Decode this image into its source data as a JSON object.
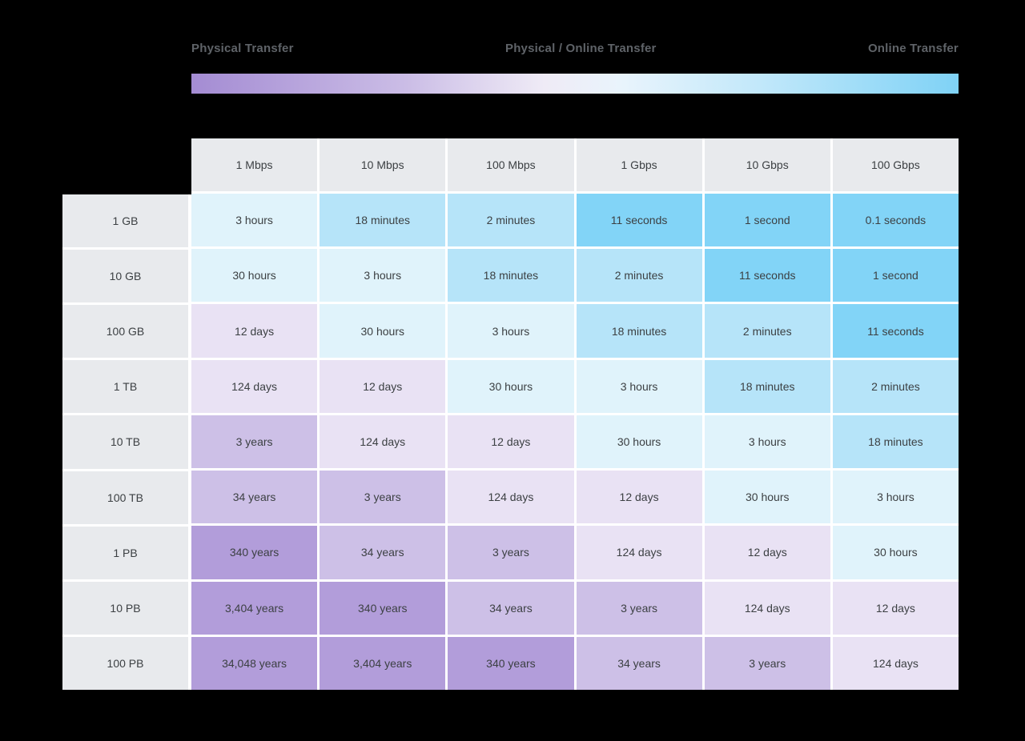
{
  "legend": {
    "labels": {
      "left": "Physical Transfer",
      "center": "Physical / Online Transfer",
      "right": "Online Transfer"
    },
    "gradient_stops": [
      "#a48cd3 0%",
      "#cbbde6 28%",
      "#efebf6 46%",
      "#e9f4fc 56%",
      "#c2e8fa 74%",
      "#7fd2f6 100%"
    ]
  },
  "palette": {
    "background": "#000000",
    "gap": "#ffffff",
    "header_bg": "#e8eaed",
    "cell_text": "#3c4043",
    "legend_text": "#5f6368",
    "seconds": "#82d4f7",
    "minutes": "#b6e4f9",
    "hours": "#e0f3fb",
    "days": "#e9e2f4",
    "years_low": "#cdc0e7",
    "years_high": "#b29dda"
  },
  "chart_data": {
    "type": "heatmap",
    "columns": [
      "1 Mbps",
      "10 Mbps",
      "100 Mbps",
      "1 Gbps",
      "10 Gbps",
      "100 Gbps"
    ],
    "rows": [
      "1 GB",
      "10 GB",
      "100 GB",
      "1 TB",
      "10 TB",
      "100 TB",
      "1 PB",
      "10 PB",
      "100 PB"
    ],
    "values": [
      [
        "3 hours",
        "18 minutes",
        "2 minutes",
        "11 seconds",
        "1 second",
        "0.1 seconds"
      ],
      [
        "30 hours",
        "3 hours",
        "18 minutes",
        "2 minutes",
        "11 seconds",
        "1 second"
      ],
      [
        "12 days",
        "30 hours",
        "3 hours",
        "18 minutes",
        "2 minutes",
        "11 seconds"
      ],
      [
        "124 days",
        "12 days",
        "30 hours",
        "3 hours",
        "18 minutes",
        "2 minutes"
      ],
      [
        "3 years",
        "124 days",
        "12 days",
        "30 hours",
        "3 hours",
        "18 minutes"
      ],
      [
        "34 years",
        "3 years",
        "124 days",
        "12 days",
        "30 hours",
        "3 hours"
      ],
      [
        "340 years",
        "34 years",
        "3 years",
        "124 days",
        "12 days",
        "30 hours"
      ],
      [
        "3,404 years",
        "340 years",
        "34 years",
        "3 years",
        "124 days",
        "12 days"
      ],
      [
        "34,048 years",
        "3,404 years",
        "340 years",
        "34 years",
        "3 years",
        "124 days"
      ]
    ],
    "cell_colors": [
      [
        "hours",
        "minutes",
        "minutes",
        "seconds",
        "seconds",
        "seconds"
      ],
      [
        "hours",
        "hours",
        "minutes",
        "minutes",
        "seconds",
        "seconds"
      ],
      [
        "days",
        "hours",
        "hours",
        "minutes",
        "minutes",
        "seconds"
      ],
      [
        "days",
        "days",
        "hours",
        "hours",
        "minutes",
        "minutes"
      ],
      [
        "years_low",
        "days",
        "days",
        "hours",
        "hours",
        "minutes"
      ],
      [
        "years_low",
        "years_low",
        "days",
        "days",
        "hours",
        "hours"
      ],
      [
        "years_high",
        "years_low",
        "years_low",
        "days",
        "days",
        "hours"
      ],
      [
        "years_high",
        "years_high",
        "years_low",
        "years_low",
        "days",
        "days"
      ],
      [
        "years_high",
        "years_high",
        "years_high",
        "years_low",
        "years_low",
        "days"
      ]
    ],
    "legend_entries": [
      "Physical Transfer",
      "Physical / Online Transfer",
      "Online Transfer"
    ],
    "legend_position": "top"
  }
}
